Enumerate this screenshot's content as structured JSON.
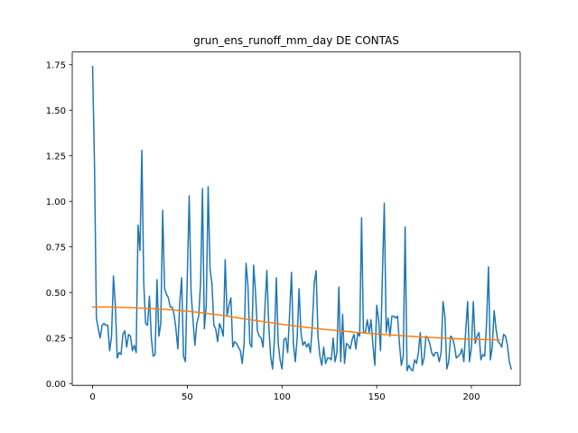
{
  "chart_data": {
    "type": "line",
    "title": "grun_ens_runoff_mm_day DE CONTAS",
    "xlabel": "",
    "ylabel": "",
    "xlim": [
      -10.75,
      225.75
    ],
    "ylim": [
      -0.01,
      1.82
    ],
    "xticks": [
      0,
      50,
      100,
      150,
      200
    ],
    "xtick_labels": [
      "0",
      "50",
      "100",
      "150",
      "200"
    ],
    "yticks": [
      0.0,
      0.25,
      0.5,
      0.75,
      1.0,
      1.25,
      1.5,
      1.75
    ],
    "ytick_labels": [
      "0.00",
      "0.25",
      "0.50",
      "0.75",
      "1.00",
      "1.25",
      "1.50",
      "1.75"
    ],
    "grid": false,
    "legend": "none",
    "series": [
      {
        "color": "#1f77b4",
        "x_start": 0,
        "x_step": 1,
        "values": [
          1.74,
          1.2,
          0.36,
          0.3,
          0.25,
          0.32,
          0.33,
          0.32,
          0.32,
          0.18,
          0.26,
          0.59,
          0.43,
          0.14,
          0.17,
          0.16,
          0.27,
          0.29,
          0.2,
          0.27,
          0.26,
          0.18,
          0.21,
          0.17,
          0.87,
          0.73,
          1.28,
          0.55,
          0.33,
          0.32,
          0.48,
          0.25,
          0.15,
          0.16,
          0.57,
          0.26,
          0.33,
          0.95,
          0.52,
          0.49,
          0.47,
          0.42,
          0.42,
          0.38,
          0.3,
          0.19,
          0.44,
          0.58,
          0.15,
          0.12,
          0.59,
          1.03,
          0.5,
          0.35,
          0.21,
          0.33,
          0.37,
          0.55,
          1.07,
          0.3,
          0.43,
          1.08,
          0.63,
          0.55,
          0.32,
          0.3,
          0.23,
          0.33,
          0.3,
          0.26,
          0.68,
          0.37,
          0.43,
          0.47,
          0.2,
          0.23,
          0.22,
          0.2,
          0.18,
          0.11,
          0.22,
          0.66,
          0.54,
          0.22,
          0.2,
          0.65,
          0.5,
          0.29,
          0.26,
          0.25,
          0.2,
          0.42,
          0.62,
          0.32,
          0.15,
          0.08,
          0.24,
          0.58,
          0.22,
          0.13,
          0.08,
          0.24,
          0.25,
          0.17,
          0.38,
          0.61,
          0.22,
          0.12,
          0.25,
          0.52,
          0.28,
          0.21,
          0.23,
          0.2,
          0.22,
          0.17,
          0.32,
          0.55,
          0.62,
          0.26,
          0.15,
          0.1,
          0.2,
          0.11,
          0.14,
          0.14,
          0.13,
          0.25,
          0.12,
          0.17,
          0.53,
          0.12,
          0.38,
          0.11,
          0.22,
          0.21,
          0.19,
          0.24,
          0.27,
          0.19,
          0.28,
          0.26,
          0.91,
          0.28,
          0.28,
          0.35,
          0.28,
          0.35,
          0.21,
          0.1,
          0.43,
          0.35,
          0.18,
          0.59,
          0.99,
          0.28,
          0.36,
          0.26,
          0.37,
          0.37,
          0.36,
          0.37,
          0.22,
          0.1,
          0.15,
          0.86,
          0.07,
          0.1,
          0.08,
          0.07,
          0.13,
          0.11,
          0.17,
          0.28,
          0.1,
          0.14,
          0.26,
          0.25,
          0.22,
          0.17,
          0.15,
          0.17,
          0.17,
          0.12,
          0.17,
          0.45,
          0.37,
          0.08,
          0.12,
          0.26,
          0.25,
          0.21,
          0.14,
          0.15,
          0.16,
          0.19,
          0.12,
          0.29,
          0.45,
          0.12,
          0.2,
          0.45,
          0.22,
          0.26,
          0.28,
          0.13,
          0.16,
          0.15,
          0.33,
          0.64,
          0.13,
          0.2,
          0.4,
          0.3,
          0.23,
          0.22,
          0.2,
          0.27,
          0.26,
          0.21,
          0.12,
          0.08
        ]
      },
      {
        "color": "#ff7f0e",
        "x": [
          0,
          10,
          20,
          30,
          40,
          50,
          60,
          70,
          80,
          90,
          100,
          110,
          120,
          130,
          140,
          150,
          160,
          170,
          180,
          190,
          200,
          215
        ],
        "values": [
          0.42,
          0.42,
          0.417,
          0.412,
          0.406,
          0.397,
          0.385,
          0.372,
          0.355,
          0.34,
          0.325,
          0.312,
          0.3,
          0.29,
          0.28,
          0.272,
          0.265,
          0.258,
          0.252,
          0.247,
          0.243,
          0.24
        ]
      }
    ]
  }
}
